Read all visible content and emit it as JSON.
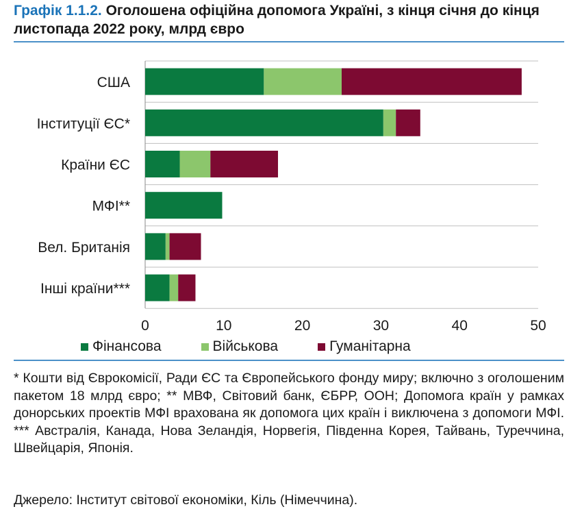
{
  "header": {
    "title_number": "Графік 1.1.2.",
    "title_text": "Оголошена офіційна допомога Україні, з кінця січня до кінця листопада 2022 року, млрд євро"
  },
  "chart_data": {
    "type": "bar",
    "orientation": "horizontal",
    "stacked": true,
    "categories": [
      "США",
      "Інституції ЄС*",
      "Країни ЄС",
      "МФІ**",
      "Вел. Британія",
      "Інші країни***"
    ],
    "series": [
      {
        "name": "Фінансова",
        "color": "#0a7a40",
        "values": [
          15.1,
          30.3,
          4.4,
          9.8,
          2.6,
          3.1
        ]
      },
      {
        "name": "Військова",
        "color": "#8cc66c",
        "values": [
          9.9,
          1.6,
          3.9,
          0.0,
          0.5,
          1.1
        ]
      },
      {
        "name": "Гуманітарна",
        "color": "#7d0a32",
        "values": [
          22.9,
          3.1,
          8.6,
          0.0,
          4.0,
          2.2
        ]
      }
    ],
    "xlim": [
      0,
      50
    ],
    "x_ticks": [
      "0",
      "10",
      "20",
      "30",
      "40",
      "50"
    ],
    "grid": true,
    "legend_position": "bottom"
  },
  "footnote": "* Кошти від Єврокомісії, Ради ЄС та Європейського фонду миру; включно з оголошеним пакетом 18 млрд євро; ** МВФ, Світовий банк, ЄБРР, ООН; Допомога країн у рамках донорських проектів МФІ врахована як допомога цих країн і виключена з допомоги МФІ. *** Австралія, Канада, Нова Зеландія, Норвегія, Південна Корея, Тайвань, Туреччина, Швейцарія, Японія.",
  "source": "Джерело: Інститут світової економіки, Кіль (Німеччина)."
}
